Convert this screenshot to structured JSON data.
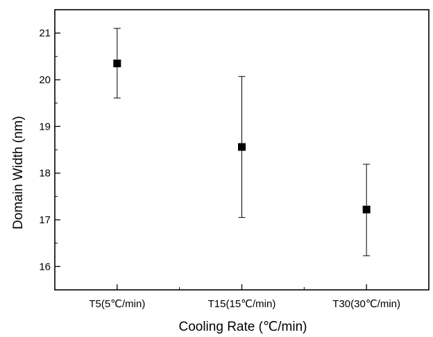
{
  "chart_data": {
    "type": "scatter",
    "title": "",
    "xlabel": "Cooling Rate (℃/min)",
    "ylabel": "Domain Width (nm)",
    "categories": [
      "T5(5℃/min)",
      "T15(15℃/min)",
      "T30(30℃/min)"
    ],
    "series": [
      {
        "values": [
          20.35,
          18.56,
          17.22
        ],
        "error_low": [
          19.61,
          17.05,
          16.23
        ],
        "error_high": [
          21.1,
          20.07,
          18.19
        ],
        "marker": "square",
        "color": "#000000"
      }
    ],
    "ylim": [
      15.5,
      21.5
    ],
    "yticks": [
      16,
      17,
      18,
      19,
      20,
      21
    ],
    "grid": false,
    "legend": "none"
  }
}
